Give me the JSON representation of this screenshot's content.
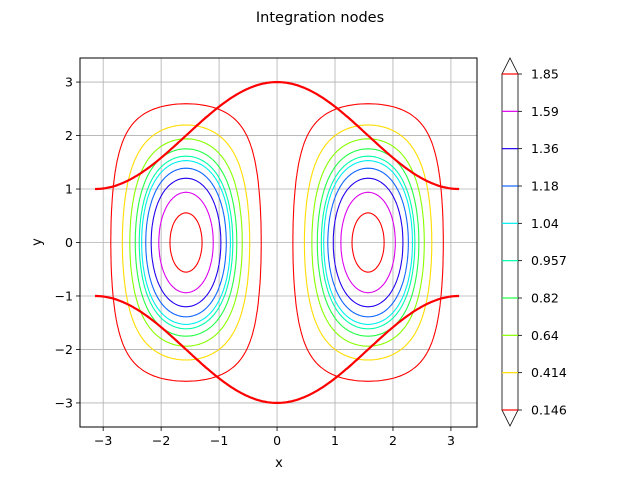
{
  "chart_data": {
    "type": "contour",
    "title": "Integration nodes",
    "xlabel": "x",
    "ylabel": "y",
    "xlim": [
      -3.4,
      3.45
    ],
    "ylim": [
      -3.45,
      3.45
    ],
    "xticks": [
      -3,
      -2,
      -1,
      0,
      1,
      2,
      3
    ],
    "xtick_labels": [
      "−3",
      "−2",
      "−1",
      "0",
      "1",
      "2",
      "3"
    ],
    "yticks": [
      -3,
      -2,
      -1,
      0,
      1,
      2,
      3
    ],
    "ytick_labels": [
      "−3",
      "−2",
      "−1",
      "0",
      "1",
      "2",
      "3"
    ],
    "grid": true,
    "contour_field": "(1 + cos y)·sin x² on x, y ∈ [−π, π]",
    "levels": [
      {
        "value": 0.146,
        "label": "0.146",
        "color": "#ff0000"
      },
      {
        "value": 0.414,
        "label": "0.414",
        "color": "#ffdd00"
      },
      {
        "value": 0.64,
        "label": "0.64",
        "color": "#88ff00"
      },
      {
        "value": 0.82,
        "label": "0.82",
        "color": "#22ff44"
      },
      {
        "value": 0.957,
        "label": "0.957",
        "color": "#00ffaa"
      },
      {
        "value": 1.04,
        "label": "1.04",
        "color": "#00eeee"
      },
      {
        "value": 1.18,
        "label": "1.18",
        "color": "#1166ff"
      },
      {
        "value": 1.36,
        "label": "1.36",
        "color": "#2200ee"
      },
      {
        "value": 1.59,
        "label": "1.59",
        "color": "#dd00ee"
      },
      {
        "value": 1.85,
        "label": "1.85",
        "color": "#ff0000"
      }
    ],
    "boundary_curves": {
      "color": "#ff0000",
      "upper": "y = 2 + cos x",
      "lower": "y = −2 − cos x"
    },
    "colorbar": {
      "position": "right",
      "extend": "both"
    }
  }
}
